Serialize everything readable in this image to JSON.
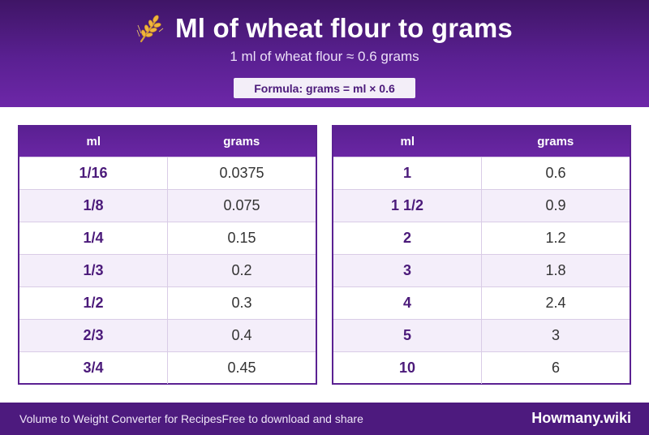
{
  "header": {
    "title": "Ml of wheat flour to grams",
    "subtitle": "1 ml of wheat flour ≈ 0.6 grams",
    "formula": "Formula: grams = ml × 0.6",
    "icon": "wheat-icon"
  },
  "tables": [
    {
      "columns": [
        "ml",
        "grams"
      ],
      "rows": [
        {
          "ml": "1/16",
          "grams": "0.0375"
        },
        {
          "ml": "1/8",
          "grams": "0.075"
        },
        {
          "ml": "1/4",
          "grams": "0.15"
        },
        {
          "ml": "1/3",
          "grams": "0.2"
        },
        {
          "ml": "1/2",
          "grams": "0.3"
        },
        {
          "ml": "2/3",
          "grams": "0.4"
        },
        {
          "ml": "3/4",
          "grams": "0.45"
        }
      ]
    },
    {
      "columns": [
        "ml",
        "grams"
      ],
      "rows": [
        {
          "ml": "1",
          "grams": "0.6"
        },
        {
          "ml": "1 1/2",
          "grams": "0.9"
        },
        {
          "ml": "2",
          "grams": "1.2"
        },
        {
          "ml": "3",
          "grams": "1.8"
        },
        {
          "ml": "4",
          "grams": "2.4"
        },
        {
          "ml": "5",
          "grams": "3"
        },
        {
          "ml": "10",
          "grams": "6"
        }
      ]
    }
  ],
  "footer": {
    "left_text": "Volume to Weight Converter for Recipes",
    "middle_text": "Free to download and share",
    "brand": "Howmany.wiki"
  },
  "colors": {
    "primary": "#5a2092",
    "header_dark": "#3f1566",
    "accent_text": "#4b1a7a",
    "row_alt": "#f4eefa"
  }
}
